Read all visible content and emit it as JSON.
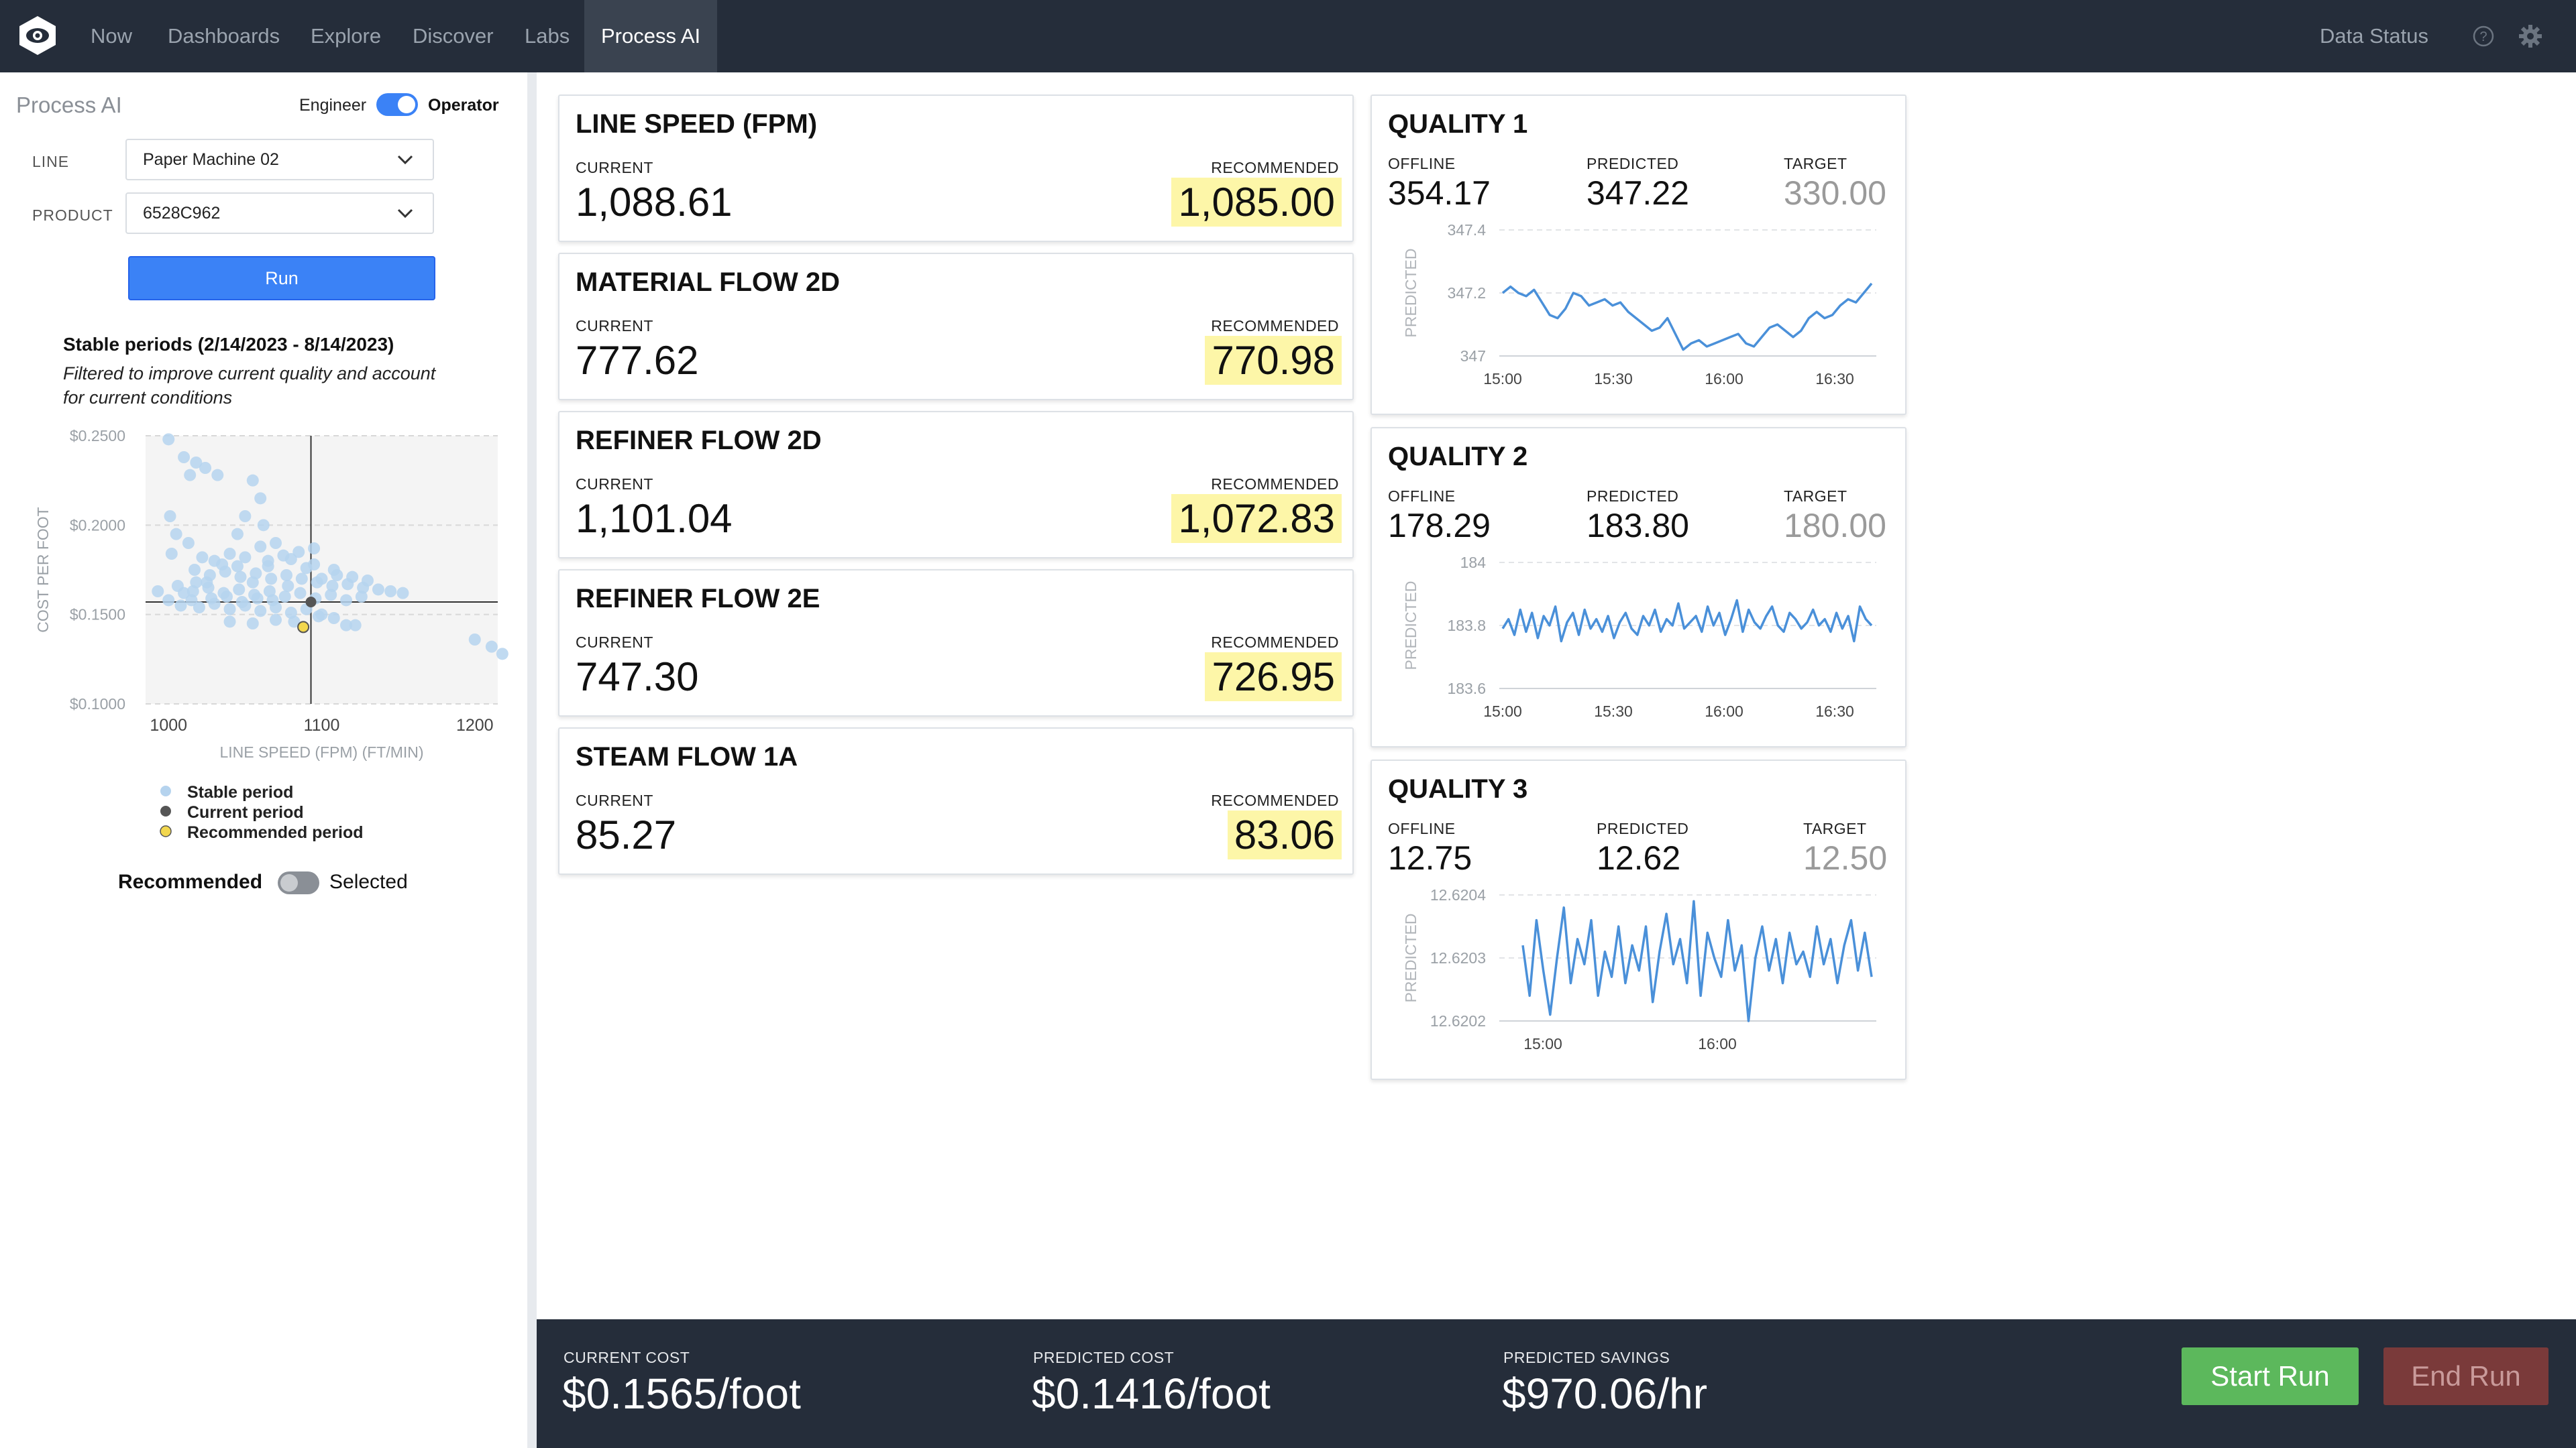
{
  "nav": {
    "items": [
      "Now",
      "Dashboards",
      "Explore",
      "Discover",
      "Labs",
      "Process AI"
    ],
    "active": "Process AI",
    "data_status": "Data Status",
    "icons": [
      "logo-icon",
      "help-icon",
      "gear-icon"
    ]
  },
  "sidebar": {
    "title": "Process AI",
    "mode_toggle": {
      "left_label": "Engineer",
      "right_label": "Operator",
      "on": true
    },
    "line": {
      "label": "LINE",
      "value": "Paper Machine 02"
    },
    "product": {
      "label": "PRODUCT",
      "value": "6528C962"
    },
    "run_label": "Run",
    "stable_title": "Stable periods (2/14/2023 - 8/14/2023)",
    "stable_note_1": "Filtered to improve current quality and account",
    "stable_note_2": "for current conditions",
    "legend": {
      "stable": "Stable period",
      "current": "Current period",
      "recommended": "Recommended period"
    },
    "bottom_toggle": {
      "left_label": "Recommended",
      "right_label": "Selected",
      "on": false
    }
  },
  "chart_data": [
    {
      "type": "scatter",
      "xlabel": "LINE SPEED (FPM) (FT/MIN)",
      "ylabel": "COST PER FOOT",
      "xlim": [
        985,
        1215
      ],
      "ylim": [
        0.1,
        0.25
      ],
      "x_ticks": [
        "1000",
        "1100",
        "1200"
      ],
      "y_ticks": [
        "$0.2500",
        "$0.2000",
        "$0.1500",
        "$0.1000"
      ],
      "series": [
        {
          "name": "Stable period",
          "color": "#b5d3ee",
          "points": [
            [
              1000,
              0.248
            ],
            [
              1010,
              0.238
            ],
            [
              1018,
              0.235
            ],
            [
              1014,
              0.228
            ],
            [
              1024,
              0.232
            ],
            [
              1032,
              0.228
            ],
            [
              1055,
              0.225
            ],
            [
              1060,
              0.215
            ],
            [
              1050,
              0.205
            ],
            [
              1045,
              0.195
            ],
            [
              1062,
              0.2
            ],
            [
              1070,
              0.19
            ],
            [
              1060,
              0.188
            ],
            [
              1001,
              0.205
            ],
            [
              1005,
              0.195
            ],
            [
              1013,
              0.19
            ],
            [
              1002,
              0.184
            ],
            [
              1022,
              0.182
            ],
            [
              1030,
              0.18
            ],
            [
              1040,
              0.184
            ],
            [
              1050,
              0.182
            ],
            [
              1065,
              0.18
            ],
            [
              1080,
              0.181
            ],
            [
              1095,
              0.178
            ],
            [
              1108,
              0.175
            ],
            [
              1017,
              0.175
            ],
            [
              1027,
              0.172
            ],
            [
              1037,
              0.174
            ],
            [
              1047,
              0.171
            ],
            [
              1057,
              0.173
            ],
            [
              1067,
              0.17
            ],
            [
              1077,
              0.172
            ],
            [
              1087,
              0.17
            ],
            [
              1097,
              0.168
            ],
            [
              1107,
              0.166
            ],
            [
              1117,
              0.167
            ],
            [
              1127,
              0.165
            ],
            [
              1137,
              0.164
            ],
            [
              1145,
              0.163
            ],
            [
              1153,
              0.162
            ],
            [
              993,
              0.163
            ],
            [
              1006,
              0.166
            ],
            [
              1016,
              0.163
            ],
            [
              1026,
              0.165
            ],
            [
              1036,
              0.162
            ],
            [
              1046,
              0.164
            ],
            [
              1056,
              0.161
            ],
            [
              1066,
              0.163
            ],
            [
              1076,
              0.16
            ],
            [
              1086,
              0.162
            ],
            [
              1096,
              0.159
            ],
            [
              1106,
              0.161
            ],
            [
              1116,
              0.158
            ],
            [
              1126,
              0.16
            ],
            [
              1008,
              0.155
            ],
            [
              1020,
              0.154
            ],
            [
              1030,
              0.156
            ],
            [
              1040,
              0.153
            ],
            [
              1050,
              0.155
            ],
            [
              1060,
              0.152
            ],
            [
              1070,
              0.154
            ],
            [
              1080,
              0.151
            ],
            [
              1090,
              0.153
            ],
            [
              1100,
              0.15
            ],
            [
              1040,
              0.146
            ],
            [
              1055,
              0.145
            ],
            [
              1070,
              0.147
            ],
            [
              1082,
              0.146
            ],
            [
              1098,
              0.149
            ],
            [
              1108,
              0.148
            ],
            [
              1116,
              0.144
            ],
            [
              1122,
              0.144
            ],
            [
              1211,
              0.132
            ],
            [
              1200,
              0.136
            ],
            [
              1218,
              0.128
            ],
            [
              1095,
              0.187
            ],
            [
              1085,
              0.185
            ],
            [
              1075,
              0.183
            ],
            [
              1065,
              0.177
            ],
            [
              1055,
              0.168
            ],
            [
              1045,
              0.177
            ],
            [
              1035,
              0.178
            ],
            [
              1025,
              0.168
            ],
            [
              1015,
              0.158
            ],
            [
              1010,
              0.162
            ],
            [
              1000,
              0.158
            ],
            [
              1110,
              0.172
            ],
            [
              1120,
              0.171
            ],
            [
              1130,
              0.169
            ],
            [
              1090,
              0.176
            ],
            [
              1100,
              0.17
            ],
            [
              1078,
              0.166
            ],
            [
              1068,
              0.158
            ],
            [
              1058,
              0.159
            ],
            [
              1048,
              0.157
            ],
            [
              1038,
              0.16
            ],
            [
              1028,
              0.159
            ],
            [
              1018,
              0.168
            ]
          ]
        },
        {
          "name": "Current period",
          "color": "#555555",
          "points": [
            [
              1093,
              0.157
            ]
          ]
        },
        {
          "name": "Recommended period",
          "color": "#f2d74e",
          "points": [
            [
              1088,
              0.143
            ]
          ]
        }
      ],
      "crosshair": {
        "x": 1093,
        "y": 0.157
      },
      "grid": "horizontal dashed"
    },
    {
      "type": "line",
      "title": "QUALITY 1 PREDICTED",
      "ylabel": "PREDICTED",
      "x_ticks": [
        "15:00",
        "15:30",
        "16:00",
        "16:30"
      ],
      "y_ticks": [
        "347.4",
        "347.2",
        "347"
      ],
      "ylim": [
        347.0,
        347.4
      ],
      "color": "#4a90d9",
      "values": [
        347.2,
        347.22,
        347.2,
        347.19,
        347.21,
        347.17,
        347.13,
        347.12,
        347.15,
        347.2,
        347.19,
        347.16,
        347.17,
        347.18,
        347.16,
        347.17,
        347.14,
        347.12,
        347.1,
        347.08,
        347.09,
        347.12,
        347.07,
        347.02,
        347.04,
        347.05,
        347.03,
        347.04,
        347.05,
        347.06,
        347.07,
        347.04,
        347.03,
        347.06,
        347.09,
        347.1,
        347.08,
        347.06,
        347.08,
        347.12,
        347.14,
        347.12,
        347.13,
        347.16,
        347.18,
        347.17,
        347.2,
        347.23
      ],
      "grid": "horizontal dashed"
    },
    {
      "type": "line",
      "title": "QUALITY 2 PREDICTED",
      "ylabel": "PREDICTED",
      "x_ticks": [
        "15:00",
        "15:30",
        "16:00",
        "16:30"
      ],
      "y_ticks": [
        "184",
        "183.8",
        "183.6"
      ],
      "ylim": [
        183.6,
        184.0
      ],
      "color": "#4a90d9",
      "values": [
        183.79,
        183.82,
        183.77,
        183.85,
        183.78,
        183.84,
        183.76,
        183.83,
        183.8,
        183.86,
        183.75,
        183.81,
        183.84,
        183.77,
        183.85,
        183.79,
        183.82,
        183.78,
        183.83,
        183.76,
        183.81,
        183.84,
        183.79,
        183.77,
        183.83,
        183.8,
        183.85,
        183.78,
        183.82,
        183.8,
        183.87,
        183.79,
        183.81,
        183.83,
        183.78,
        183.86,
        183.8,
        183.84,
        183.77,
        183.82,
        183.88,
        183.78,
        183.85,
        183.81,
        183.79,
        183.83,
        183.86,
        183.8,
        183.78,
        183.84,
        183.82,
        183.79,
        183.81,
        183.85,
        183.8,
        183.82,
        183.78,
        183.84,
        183.79,
        183.83,
        183.75,
        183.86,
        183.82,
        183.8
      ],
      "grid": "horizontal dashed"
    },
    {
      "type": "line",
      "title": "QUALITY 3 PREDICTED",
      "ylabel": "PREDICTED",
      "x_ticks": [
        "15:00",
        "16:00"
      ],
      "y_ticks": [
        "12.6204",
        "12.6203",
        "12.6202"
      ],
      "ylim": [
        12.6202,
        12.6204
      ],
      "color": "#4a90d9",
      "values": [
        12.62032,
        12.62024,
        12.62036,
        12.62028,
        12.62021,
        12.6203,
        12.62038,
        12.62026,
        12.62033,
        12.62029,
        12.62036,
        12.62024,
        12.62031,
        12.62027,
        12.62035,
        12.62026,
        12.62032,
        12.62028,
        12.62035,
        12.62023,
        12.62031,
        12.62037,
        12.62029,
        12.62033,
        12.62026,
        12.62039,
        12.62024,
        12.62034,
        12.6203,
        12.62027,
        12.62036,
        12.62028,
        12.62032,
        12.6202,
        12.6203,
        12.62035,
        12.62028,
        12.62033,
        12.62026,
        12.62034,
        12.62029,
        12.62031,
        12.62027,
        12.62035,
        12.62029,
        12.62033,
        12.62026,
        12.62032,
        12.62036,
        12.62028,
        12.62034,
        12.62027
      ],
      "grid": "horizontal dashed"
    }
  ],
  "flows": [
    {
      "title": "LINE SPEED (FPM)",
      "current_label": "CURRENT",
      "current": "1,088.61",
      "rec_label": "RECOMMENDED",
      "recommended": "1,085.00"
    },
    {
      "title": "MATERIAL FLOW 2D",
      "current_label": "CURRENT",
      "current": "777.62",
      "rec_label": "RECOMMENDED",
      "recommended": "770.98"
    },
    {
      "title": "REFINER FLOW 2D",
      "current_label": "CURRENT",
      "current": "1,101.04",
      "rec_label": "RECOMMENDED",
      "recommended": "1,072.83"
    },
    {
      "title": "REFINER FLOW 2E",
      "current_label": "CURRENT",
      "current": "747.30",
      "rec_label": "RECOMMENDED",
      "recommended": "726.95"
    },
    {
      "title": "STEAM FLOW 1A",
      "current_label": "CURRENT",
      "current": "85.27",
      "rec_label": "RECOMMENDED",
      "recommended": "83.06"
    }
  ],
  "quality": [
    {
      "title": "QUALITY 1",
      "offline_label": "OFFLINE",
      "offline": "354.17",
      "predicted_label": "PREDICTED",
      "predicted": "347.22",
      "target_label": "TARGET",
      "target": "330.00"
    },
    {
      "title": "QUALITY 2",
      "offline_label": "OFFLINE",
      "offline": "178.29",
      "predicted_label": "PREDICTED",
      "predicted": "183.80",
      "target_label": "TARGET",
      "target": "180.00"
    },
    {
      "title": "QUALITY 3",
      "offline_label": "OFFLINE",
      "offline": "12.75",
      "predicted_label": "PREDICTED",
      "predicted": "12.62",
      "target_label": "TARGET",
      "target": "12.50"
    }
  ],
  "footer": {
    "current_cost_label": "CURRENT COST",
    "current_cost": "$0.1565/foot",
    "predicted_cost_label": "PREDICTED COST",
    "predicted_cost": "$0.1416/foot",
    "savings_label": "PREDICTED SAVINGS",
    "savings": "$970.06/hr",
    "start_label": "Start Run",
    "end_label": "End Run"
  },
  "colors": {
    "nav_bg": "#252d3a",
    "accent_blue": "#3b82f6",
    "highlight": "#fdf6a8",
    "start_green": "#5cb85c",
    "end_red": "#7a3a3a"
  }
}
